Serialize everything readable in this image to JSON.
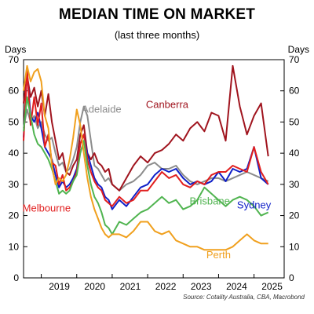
{
  "chart_data": {
    "type": "line",
    "title": "MEDIAN TIME ON MARKET",
    "subtitle": "(last three months)",
    "ylabel_left": "Days",
    "ylabel_right": "Days",
    "source": "Source: Cotality Australia, CBA, Macrobond",
    "ylim": [
      0,
      70
    ],
    "yticks": [
      0,
      10,
      20,
      30,
      40,
      50,
      60,
      70
    ],
    "xlim": [
      2018.5,
      2025.85
    ],
    "xticks": [
      {
        "label": "2019",
        "value": 2019
      },
      {
        "label": "2020",
        "value": 2020
      },
      {
        "label": "2021",
        "value": 2021
      },
      {
        "label": "2022",
        "value": 2022
      },
      {
        "label": "2023",
        "value": 2023
      },
      {
        "label": "2024",
        "value": 2024
      },
      {
        "label": "2025",
        "value": 2025
      }
    ],
    "grid": false,
    "series": [
      {
        "name": "Adelaide",
        "color": "#8c8c8c",
        "x": [
          2018.5,
          2018.6,
          2018.7,
          2018.8,
          2018.9,
          2019.0,
          2019.1,
          2019.2,
          2019.3,
          2019.4,
          2019.5,
          2019.6,
          2019.7,
          2019.8,
          2019.9,
          2020.0,
          2020.1,
          2020.2,
          2020.3,
          2020.4,
          2020.5,
          2020.6,
          2020.7,
          2020.8,
          2020.9,
          2021.0,
          2021.2,
          2021.4,
          2021.6,
          2021.8,
          2022.0,
          2022.2,
          2022.4,
          2022.6,
          2022.8,
          2023.0,
          2023.2,
          2023.4,
          2023.6,
          2023.8,
          2024.0,
          2024.2,
          2024.4,
          2024.6,
          2024.8,
          2025.0,
          2025.2,
          2025.4
        ],
        "y": [
          48,
          54,
          50,
          52,
          48,
          50,
          46,
          44,
          45,
          40,
          36,
          37,
          34,
          35,
          38,
          42,
          50,
          55,
          52,
          44,
          36,
          35,
          33,
          31,
          32,
          30,
          28,
          30,
          31,
          33,
          36,
          37,
          35,
          35,
          36,
          33,
          31,
          30,
          31,
          32,
          32,
          31,
          32,
          33,
          34,
          33,
          32,
          31
        ]
      },
      {
        "name": "Canberra",
        "color": "#a0141e",
        "x": [
          2018.5,
          2018.6,
          2018.7,
          2018.8,
          2018.9,
          2019.0,
          2019.1,
          2019.2,
          2019.3,
          2019.4,
          2019.5,
          2019.6,
          2019.7,
          2019.8,
          2019.9,
          2020.0,
          2020.1,
          2020.2,
          2020.3,
          2020.4,
          2020.5,
          2020.6,
          2020.7,
          2020.8,
          2020.9,
          2021.0,
          2021.2,
          2021.4,
          2021.6,
          2021.8,
          2022.0,
          2022.2,
          2022.4,
          2022.6,
          2022.8,
          2023.0,
          2023.2,
          2023.4,
          2023.6,
          2023.8,
          2024.0,
          2024.2,
          2024.4,
          2024.6,
          2024.8,
          2025.0,
          2025.2,
          2025.4
        ],
        "y": [
          56,
          65,
          58,
          61,
          55,
          60,
          52,
          59,
          50,
          44,
          38,
          40,
          34,
          33,
          36,
          38,
          46,
          49,
          40,
          38,
          40,
          37,
          36,
          34,
          35,
          30,
          28,
          32,
          36,
          39,
          37,
          40,
          41,
          43,
          46,
          44,
          48,
          50,
          47,
          53,
          52,
          44,
          68,
          55,
          46,
          52,
          56,
          39
        ]
      },
      {
        "name": "Sydney",
        "color": "#1020c8",
        "x": [
          2018.5,
          2018.6,
          2018.7,
          2018.8,
          2018.9,
          2019.0,
          2019.1,
          2019.2,
          2019.3,
          2019.4,
          2019.5,
          2019.6,
          2019.7,
          2019.8,
          2019.9,
          2020.0,
          2020.1,
          2020.2,
          2020.3,
          2020.4,
          2020.5,
          2020.6,
          2020.7,
          2020.8,
          2020.9,
          2021.0,
          2021.2,
          2021.4,
          2021.6,
          2021.8,
          2022.0,
          2022.2,
          2022.4,
          2022.6,
          2022.8,
          2023.0,
          2023.2,
          2023.4,
          2023.6,
          2023.8,
          2024.0,
          2024.2,
          2024.4,
          2024.6,
          2024.8,
          2025.0,
          2025.2,
          2025.4
        ],
        "y": [
          45,
          66,
          52,
          50,
          53,
          48,
          42,
          40,
          38,
          33,
          29,
          31,
          29,
          30,
          32,
          35,
          43,
          46,
          40,
          36,
          32,
          30,
          29,
          26,
          25,
          22,
          25,
          23,
          26,
          29,
          30,
          33,
          35,
          34,
          35,
          32,
          30,
          31,
          30,
          31,
          34,
          31,
          35,
          34,
          35,
          42,
          32,
          30
        ]
      },
      {
        "name": "Melbourne",
        "color": "#e11e1e",
        "x": [
          2018.5,
          2018.6,
          2018.7,
          2018.8,
          2018.9,
          2019.0,
          2019.1,
          2019.2,
          2019.3,
          2019.4,
          2019.5,
          2019.6,
          2019.7,
          2019.8,
          2019.9,
          2020.0,
          2020.1,
          2020.2,
          2020.3,
          2020.4,
          2020.5,
          2020.6,
          2020.7,
          2020.8,
          2020.9,
          2021.0,
          2021.2,
          2021.4,
          2021.6,
          2021.8,
          2022.0,
          2022.2,
          2022.4,
          2022.6,
          2022.8,
          2023.0,
          2023.2,
          2023.4,
          2023.6,
          2023.8,
          2024.0,
          2024.2,
          2024.4,
          2024.6,
          2024.8,
          2025.0,
          2025.2,
          2025.4
        ],
        "y": [
          44,
          67,
          49,
          58,
          49,
          56,
          42,
          46,
          37,
          36,
          30,
          33,
          28,
          29,
          31,
          34,
          43,
          46,
          38,
          34,
          31,
          29,
          28,
          25,
          24,
          23,
          26,
          24,
          25,
          28,
          28,
          31,
          34,
          32,
          33,
          30,
          29,
          31,
          30,
          33,
          34,
          34,
          36,
          35,
          34,
          42,
          34,
          30
        ]
      },
      {
        "name": "Brisbane",
        "color": "#50b450",
        "x": [
          2018.5,
          2018.6,
          2018.7,
          2018.8,
          2018.9,
          2019.0,
          2019.1,
          2019.2,
          2019.3,
          2019.4,
          2019.5,
          2019.6,
          2019.7,
          2019.8,
          2019.9,
          2020.0,
          2020.1,
          2020.2,
          2020.3,
          2020.4,
          2020.5,
          2020.6,
          2020.7,
          2020.8,
          2020.9,
          2021.0,
          2021.2,
          2021.4,
          2021.6,
          2021.8,
          2022.0,
          2022.2,
          2022.4,
          2022.6,
          2022.8,
          2023.0,
          2023.2,
          2023.4,
          2023.6,
          2023.8,
          2024.0,
          2024.2,
          2024.4,
          2024.6,
          2024.8,
          2025.0,
          2025.2,
          2025.4
        ],
        "y": [
          47,
          58,
          52,
          46,
          43,
          42,
          40,
          38,
          35,
          31,
          27,
          28,
          27,
          28,
          31,
          33,
          40,
          44,
          36,
          30,
          26,
          24,
          21,
          17,
          16,
          14,
          18,
          17,
          19,
          21,
          22,
          24,
          26,
          24,
          25,
          22,
          23,
          25,
          29,
          27,
          25,
          23,
          25,
          26,
          25,
          23,
          20,
          21
        ]
      },
      {
        "name": "Perth",
        "color": "#f0a01e",
        "x": [
          2018.5,
          2018.6,
          2018.7,
          2018.8,
          2018.9,
          2019.0,
          2019.1,
          2019.2,
          2019.3,
          2019.4,
          2019.5,
          2019.6,
          2019.7,
          2019.8,
          2019.9,
          2020.0,
          2020.1,
          2020.2,
          2020.3,
          2020.4,
          2020.5,
          2020.6,
          2020.7,
          2020.8,
          2020.9,
          2021.0,
          2021.2,
          2021.4,
          2021.6,
          2021.8,
          2022.0,
          2022.2,
          2022.4,
          2022.6,
          2022.8,
          2023.0,
          2023.2,
          2023.4,
          2023.6,
          2023.8,
          2024.0,
          2024.2,
          2024.4,
          2024.6,
          2024.8,
          2025.0,
          2025.2,
          2025.4
        ],
        "y": [
          60,
          68,
          63,
          66,
          67,
          63,
          52,
          48,
          36,
          30,
          32,
          31,
          33,
          38,
          45,
          54,
          49,
          40,
          32,
          26,
          22,
          19,
          16,
          14,
          13,
          14,
          14,
          13,
          15,
          18,
          18,
          15,
          14,
          15,
          12,
          11,
          10,
          10,
          9,
          9,
          9,
          9,
          10,
          12,
          14,
          12,
          11,
          11
        ]
      }
    ],
    "labels": [
      {
        "series": "Adelaide",
        "text": "Adelaide",
        "x": 2020.7,
        "y": 53
      },
      {
        "series": "Canberra",
        "text": "Canberra",
        "x": 2022.55,
        "y": 54.5
      },
      {
        "series": "Brisbane",
        "text": "Brisbane",
        "x": 2023.75,
        "y": 23.5
      },
      {
        "series": "Sydney",
        "text": "Sydney",
        "x": 2025.0,
        "y": 22.3
      },
      {
        "series": "Melbourne",
        "text": "Melbourne",
        "x": 2019.15,
        "y": 21.3
      },
      {
        "series": "Perth",
        "text": "Perth",
        "x": 2024.0,
        "y": 6.3
      }
    ]
  }
}
